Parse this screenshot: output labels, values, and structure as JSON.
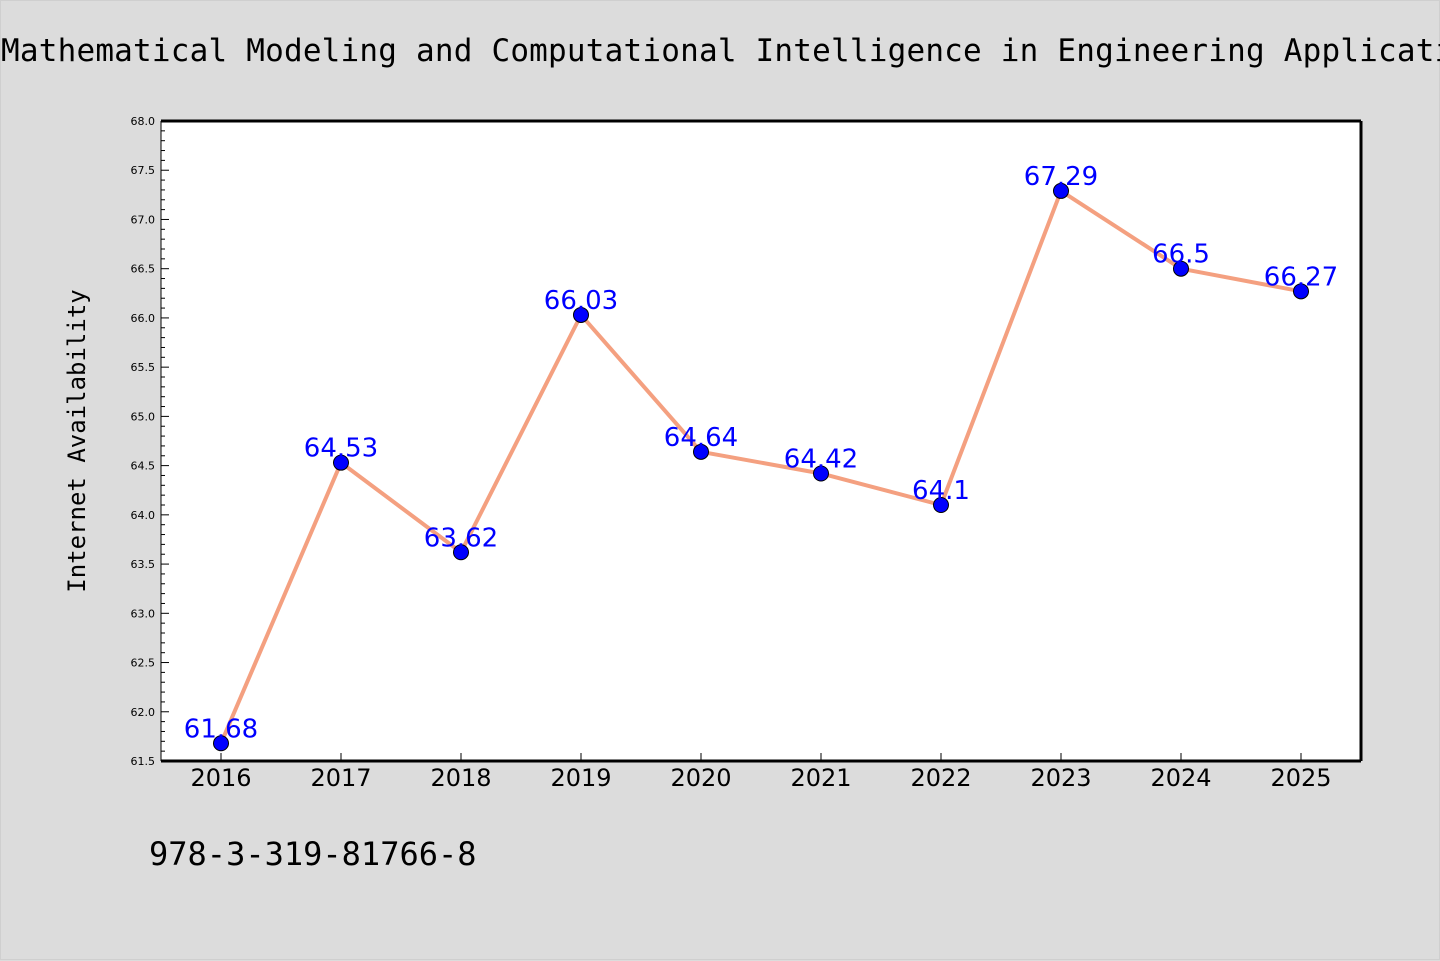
{
  "title": "Mathematical Modeling and Computational Intelligence in Engineering Applications",
  "footer_text": "978-3-319-81766-8",
  "chart_data": {
    "type": "line",
    "title": "Mathematical Modeling and Computational Intelligence in Engineering Applications",
    "xlabel": "",
    "ylabel": "Internet Availability",
    "categories": [
      "2016",
      "2017",
      "2018",
      "2019",
      "2020",
      "2021",
      "2022",
      "2023",
      "2024",
      "2025"
    ],
    "series": [
      {
        "values": [
          61.68,
          64.53,
          63.62,
          66.03,
          64.64,
          64.42,
          64.1,
          67.29,
          66.5,
          66.27
        ]
      }
    ],
    "data_labels": [
      "61.68",
      "64.53",
      "63.62",
      "66.03",
      "64.64",
      "64.42",
      "64.1",
      "67.29",
      "66.5",
      "66.27"
    ],
    "ylim": [
      61.5,
      68.0
    ],
    "yticks": [
      "61.5",
      "62.0",
      "62.5",
      "63.0",
      "63.5",
      "64.0",
      "64.5",
      "65.0",
      "65.5",
      "66.0",
      "66.5",
      "67.0",
      "67.5",
      "68.0"
    ],
    "grid": false,
    "legend": "none",
    "colors": {
      "line": "#f4a080",
      "marker": "#0000ff",
      "label": "#0000ff",
      "background": "#dcdcdc",
      "plot_bg": "#ffffff"
    }
  }
}
